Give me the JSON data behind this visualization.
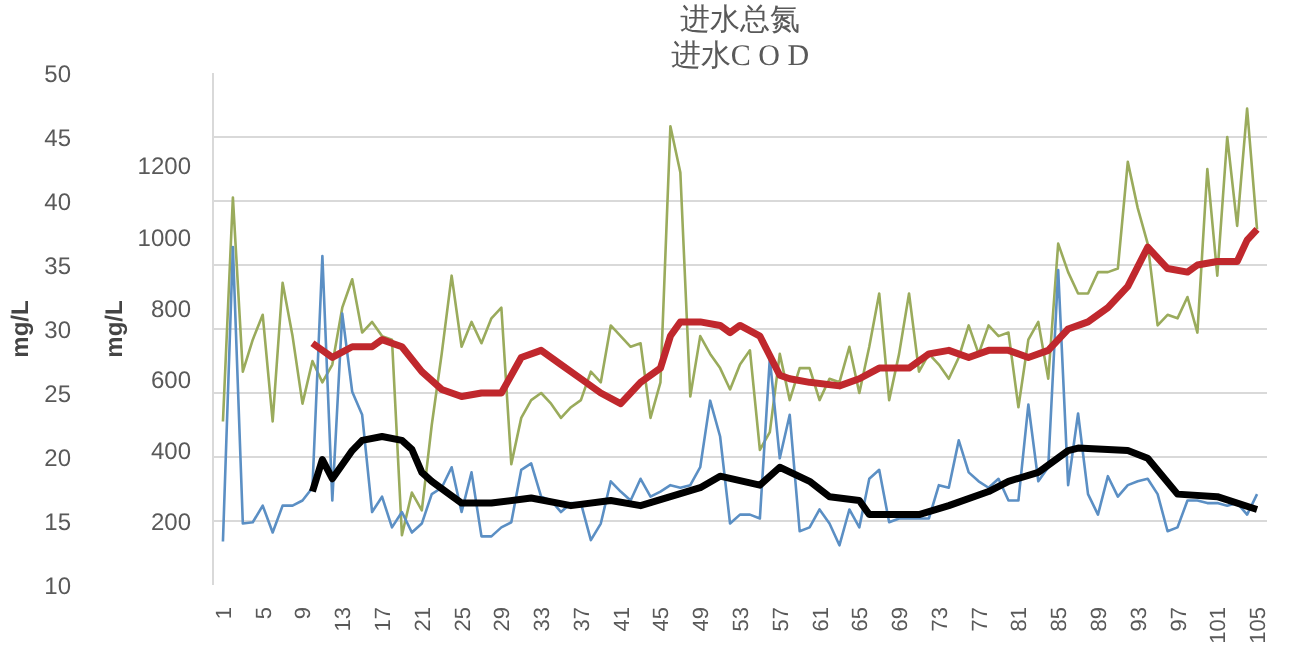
{
  "chart_data": {
    "type": "line",
    "title": "进水总氮",
    "subtitle": "进水C O D",
    "ylabel": "mg/L",
    "y2label": "mg/L",
    "xlim": [
      0,
      106
    ],
    "xticks": [
      1,
      5,
      9,
      13,
      17,
      21,
      25,
      29,
      33,
      37,
      41,
      45,
      49,
      53,
      57,
      61,
      65,
      69,
      73,
      77,
      81,
      85,
      89,
      93,
      97,
      101,
      105
    ],
    "ylim": [
      10,
      50
    ],
    "yticks": [
      10,
      15,
      20,
      25,
      30,
      35,
      40,
      45,
      50
    ],
    "y2lim": [
      20,
      1460
    ],
    "y2ticks": [
      200,
      400,
      600,
      800,
      1000,
      1200
    ],
    "grid": "y",
    "marker": "none",
    "line_style": "solid",
    "x": [
      1,
      2,
      3,
      4,
      5,
      6,
      7,
      8,
      9,
      10,
      11,
      12,
      13,
      14,
      15,
      16,
      17,
      18,
      19,
      20,
      21,
      22,
      23,
      24,
      25,
      26,
      27,
      28,
      29,
      30,
      31,
      32,
      33,
      34,
      35,
      36,
      37,
      38,
      39,
      40,
      41,
      42,
      43,
      44,
      45,
      46,
      47,
      48,
      49,
      50,
      51,
      52,
      53,
      54,
      55,
      56,
      57,
      58,
      59,
      60,
      61,
      62,
      63,
      64,
      65,
      66,
      67,
      68,
      69,
      70,
      71,
      72,
      73,
      74,
      75,
      76,
      77,
      78,
      79,
      80,
      81,
      82,
      83,
      84,
      85,
      86,
      87,
      88,
      89,
      90,
      91,
      92,
      93,
      94,
      95,
      96,
      97,
      98,
      99,
      100,
      101,
      102,
      103,
      104,
      105
    ],
    "series": [
      {
        "color": "#9aab5c",
        "axis": "y2",
        "values": [
          480,
          1110,
          620,
          710,
          780,
          480,
          870,
          720,
          530,
          650,
          590,
          640,
          800,
          880,
          730,
          760,
          720,
          710,
          160,
          280,
          230,
          470,
          670,
          890,
          690,
          760,
          700,
          770,
          800,
          360,
          490,
          540,
          560,
          530,
          490,
          520,
          540,
          620,
          590,
          750,
          720,
          690,
          700,
          490,
          590,
          1310,
          1180,
          550,
          720,
          670,
          630,
          570,
          640,
          680,
          400,
          450,
          670,
          540,
          630,
          630,
          540,
          600,
          590,
          690,
          560,
          690,
          840,
          540,
          670,
          840,
          620,
          670,
          640,
          600,
          660,
          750,
          670,
          750,
          720,
          730,
          520,
          710,
          760,
          600,
          980,
          900,
          840,
          840,
          900,
          900,
          910,
          1210,
          1080,
          980,
          750,
          780,
          770,
          830,
          730,
          1190,
          890,
          1280,
          1030,
          1360,
          1020
        ]
      },
      {
        "color": "#5b8fc4",
        "values": [
          13.4,
          36.4,
          14.8,
          14.9,
          16.2,
          14.1,
          16.2,
          16.2,
          16.6,
          17.6,
          35.7,
          16.6,
          31.2,
          25.1,
          23.3,
          15.7,
          16.9,
          14.5,
          15.7,
          14.1,
          14.8,
          17.1,
          17.6,
          19.2,
          15.7,
          18.8,
          13.8,
          13.8,
          14.5,
          14.9,
          19.0,
          19.5,
          16.9,
          16.6,
          15.7,
          16.4,
          16.4,
          13.5,
          14.8,
          18.1,
          17.3,
          16.6,
          18.3,
          16.9,
          17.3,
          17.8,
          17.6,
          17.8,
          19.2,
          24.4,
          21.6,
          14.8,
          15.5,
          15.5,
          15.2,
          27.7,
          19.9,
          23.3,
          14.2,
          14.5,
          15.9,
          14.8,
          13.1,
          15.9,
          14.5,
          18.3,
          19.0,
          14.9,
          15.2,
          15.2,
          15.2,
          15.2,
          17.8,
          17.6,
          21.3,
          18.8,
          18.1,
          17.6,
          18.3,
          16.6,
          16.6,
          24.1,
          18.1,
          19.2,
          34.6,
          17.8,
          23.4,
          17.1,
          15.5,
          18.5,
          16.9,
          17.8,
          18.1,
          18.3,
          17.1,
          14.2,
          14.5,
          16.6,
          16.6,
          16.4,
          16.4,
          16.2,
          16.4,
          15.5,
          17.1
        ]
      },
      {
        "color": "#c0282d",
        "axis": "y2",
        "x": [
          10,
          12,
          14,
          16,
          17,
          18,
          19,
          21,
          23,
          25,
          27,
          29,
          31,
          33,
          35,
          37,
          39,
          41,
          43,
          45,
          46,
          47,
          49,
          51,
          52,
          53,
          55,
          57,
          58,
          60,
          63,
          65,
          67,
          70,
          72,
          74,
          76,
          78,
          80,
          82,
          84,
          86,
          88,
          90,
          92,
          94,
          96,
          98,
          99,
          101,
          103,
          104,
          105
        ],
        "values": [
          700,
          660,
          690,
          690,
          710,
          700,
          690,
          620,
          570,
          550,
          560,
          560,
          660,
          680,
          640,
          600,
          560,
          530,
          590,
          630,
          720,
          760,
          760,
          750,
          730,
          750,
          720,
          610,
          600,
          590,
          580,
          600,
          630,
          630,
          670,
          680,
          660,
          680,
          680,
          660,
          680,
          740,
          760,
          800,
          860,
          970,
          910,
          900,
          920,
          930,
          930,
          990,
          1020
        ]
      },
      {
        "color": "#000000",
        "x": [
          10,
          11,
          12,
          14,
          15,
          17,
          19,
          20,
          21,
          22,
          25,
          28,
          32,
          36,
          40,
          43,
          46,
          49,
          51,
          55,
          57,
          60,
          62,
          65,
          66,
          71,
          74,
          78,
          80,
          83,
          86,
          87,
          92,
          94,
          97,
          101,
          105
        ],
        "values": [
          17.3,
          19.8,
          18.3,
          20.5,
          21.3,
          21.6,
          21.3,
          20.6,
          18.8,
          18.1,
          16.4,
          16.4,
          16.8,
          16.2,
          16.6,
          16.2,
          16.9,
          17.6,
          18.5,
          17.8,
          19.2,
          18.1,
          16.9,
          16.6,
          15.5,
          15.5,
          16.2,
          17.3,
          18.1,
          18.8,
          20.5,
          20.7,
          20.5,
          19.9,
          17.1,
          16.9,
          15.9
        ]
      }
    ]
  }
}
